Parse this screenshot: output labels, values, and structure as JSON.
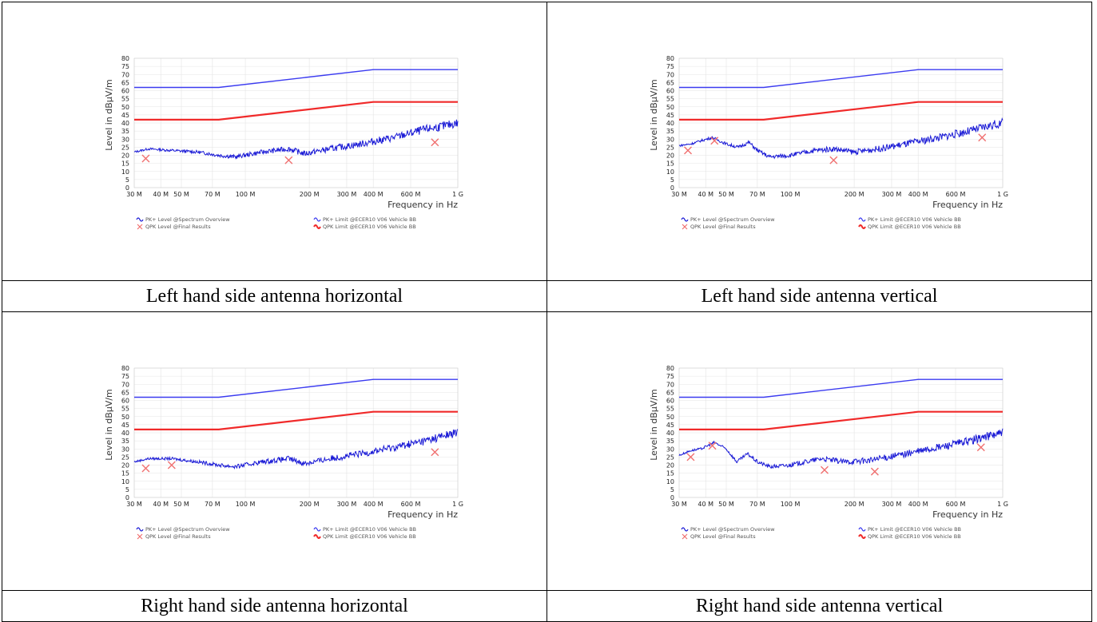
{
  "panels_caption": [
    "Left hand side antenna horizontal",
    "Left hand side antenna vertical",
    "Right hand side antenna horizontal",
    "Right hand side antenna vertical"
  ],
  "colors": {
    "pk_trace": "#1a1ad6",
    "pk_limit": "#3b3bf0",
    "qpk_limit": "#f02a2a",
    "qpk_marker": "#f07070",
    "grid": "#e4e4e4"
  },
  "chart_data": [
    {
      "type": "line",
      "title": "",
      "xlabel": "Frequency in Hz",
      "ylabel": "Level in dBµV/m",
      "x_scale": "log",
      "xlim": [
        30000000,
        1000000000
      ],
      "ylim": [
        0,
        80
      ],
      "x_ticks": [
        "30 M",
        "40 M",
        "50 M",
        "70 M",
        "100 M",
        "200 M",
        "300 M",
        "400 M",
        "600 M",
        "1 G"
      ],
      "y_ticks": [
        "0",
        "5",
        "10",
        "15",
        "20",
        "25",
        "30",
        "35",
        "40",
        "45",
        "50",
        "55",
        "60",
        "65",
        "70",
        "75",
        "80"
      ],
      "legend": [
        "PK+ Level @Spectrum Overview",
        "QPK Level @Final Results",
        "PK+ Limit @ECER10 V06 Vehicle BB",
        "QPK Limit @ECER10 V06 Vehicle BB"
      ],
      "legend_position": "bottom",
      "series": [
        {
          "name": "PK+ Limit @ECER10 V06 Vehicle BB",
          "x": [
            30000000,
            75000000,
            400000000,
            1000000000
          ],
          "y": [
            62,
            62,
            73,
            73
          ]
        },
        {
          "name": "QPK Limit @ECER10 V06 Vehicle BB",
          "x": [
            30000000,
            75000000,
            400000000,
            1000000000
          ],
          "y": [
            42,
            42,
            53,
            53
          ]
        },
        {
          "name": "PK+ Level @Spectrum Overview",
          "x": [
            30000000,
            35000000,
            45000000,
            60000000,
            75000000,
            90000000,
            120000000,
            160000000,
            190000000,
            250000000,
            350000000,
            500000000,
            700000000,
            850000000,
            1000000000
          ],
          "y": [
            22,
            24,
            23,
            22,
            20,
            19,
            22,
            24,
            21,
            24,
            27,
            31,
            36,
            38,
            40
          ]
        },
        {
          "name": "QPK Level @Final Results",
          "x": [
            34000000,
            160000000,
            780000000
          ],
          "y": [
            18,
            17,
            28
          ]
        }
      ]
    },
    {
      "type": "line",
      "title": "",
      "xlabel": "Frequency in Hz",
      "ylabel": "Level in dBµV/m",
      "x_scale": "log",
      "xlim": [
        30000000,
        1000000000
      ],
      "ylim": [
        0,
        80
      ],
      "x_ticks": [
        "30 M",
        "40 M",
        "50 M",
        "70 M",
        "100 M",
        "200 M",
        "300 M",
        "400 M",
        "600 M",
        "1 G"
      ],
      "y_ticks": [
        "0",
        "5",
        "10",
        "15",
        "20",
        "25",
        "30",
        "35",
        "40",
        "45",
        "50",
        "55",
        "60",
        "65",
        "70",
        "75",
        "80"
      ],
      "legend": [
        "PK+ Level @Spectrum Overview",
        "QPK Level @Final Results",
        "PK+ Limit @ECER10 V06 Vehicle BB",
        "QPK Limit @ECER10 V06 Vehicle BB"
      ],
      "legend_position": "bottom",
      "series": [
        {
          "name": "PK+ Limit @ECER10 V06 Vehicle BB",
          "x": [
            30000000,
            75000000,
            400000000,
            1000000000
          ],
          "y": [
            62,
            62,
            73,
            73
          ]
        },
        {
          "name": "QPK Limit @ECER10 V06 Vehicle BB",
          "x": [
            30000000,
            75000000,
            400000000,
            1000000000
          ],
          "y": [
            42,
            42,
            53,
            53
          ]
        },
        {
          "name": "PK+ Level @Spectrum Overview",
          "x": [
            30000000,
            34000000,
            38000000,
            43000000,
            50000000,
            57000000,
            64000000,
            70000000,
            80000000,
            100000000,
            130000000,
            160000000,
            200000000,
            260000000,
            350000000,
            500000000,
            700000000,
            850000000,
            1000000000
          ],
          "y": [
            26,
            27,
            29,
            31,
            27,
            25,
            28,
            23,
            19,
            20,
            23,
            24,
            22,
            24,
            27,
            31,
            35,
            38,
            40
          ]
        },
        {
          "name": "QPK Level @Final Results",
          "x": [
            33000000,
            44000000,
            160000000,
            800000000
          ],
          "y": [
            23,
            29,
            17,
            31
          ]
        }
      ]
    },
    {
      "type": "line",
      "title": "",
      "xlabel": "Frequency in Hz",
      "ylabel": "Level in dBµV/m",
      "x_scale": "log",
      "xlim": [
        30000000,
        1000000000
      ],
      "ylim": [
        0,
        80
      ],
      "x_ticks": [
        "30 M",
        "40 M",
        "50 M",
        "70 M",
        "100 M",
        "200 M",
        "300 M",
        "400 M",
        "600 M",
        "1 G"
      ],
      "y_ticks": [
        "0",
        "5",
        "10",
        "15",
        "20",
        "25",
        "30",
        "35",
        "40",
        "45",
        "50",
        "55",
        "60",
        "65",
        "70",
        "75",
        "80"
      ],
      "legend": [
        "PK+ Level @Spectrum Overview",
        "QPK Level @Final Results",
        "PK+ Limit @ECER10 V06 Vehicle BB",
        "QPK Limit @ECER10 V06 Vehicle BB"
      ],
      "legend_position": "bottom",
      "series": [
        {
          "name": "PK+ Limit @ECER10 V06 Vehicle BB",
          "x": [
            30000000,
            75000000,
            400000000,
            1000000000
          ],
          "y": [
            62,
            62,
            73,
            73
          ]
        },
        {
          "name": "QPK Limit @ECER10 V06 Vehicle BB",
          "x": [
            30000000,
            75000000,
            400000000,
            1000000000
          ],
          "y": [
            42,
            42,
            53,
            53
          ]
        },
        {
          "name": "PK+ Level @Spectrum Overview",
          "x": [
            30000000,
            35000000,
            45000000,
            60000000,
            75000000,
            90000000,
            120000000,
            160000000,
            190000000,
            250000000,
            350000000,
            500000000,
            700000000,
            850000000,
            1000000000
          ],
          "y": [
            22,
            24,
            24,
            22,
            20,
            19,
            22,
            24,
            21,
            24,
            27,
            31,
            35,
            38,
            40
          ]
        },
        {
          "name": "QPK Level @Final Results",
          "x": [
            34000000,
            45000000,
            780000000
          ],
          "y": [
            18,
            20,
            28
          ]
        }
      ]
    },
    {
      "type": "line",
      "title": "",
      "xlabel": "Frequency in Hz",
      "ylabel": "Level in dBµV/m",
      "x_scale": "log",
      "xlim": [
        30000000,
        1000000000
      ],
      "ylim": [
        0,
        80
      ],
      "x_ticks": [
        "30 M",
        "40 M",
        "50 M",
        "70 M",
        "100 M",
        "200 M",
        "300 M",
        "400 M",
        "600 M",
        "1 G"
      ],
      "y_ticks": [
        "0",
        "5",
        "10",
        "15",
        "20",
        "25",
        "30",
        "35",
        "40",
        "45",
        "50",
        "55",
        "60",
        "65",
        "70",
        "75",
        "80"
      ],
      "legend": [
        "PK+ Level @Spectrum Overview",
        "QPK Level @Final Results",
        "PK+ Limit @ECER10 V06 Vehicle BB",
        "QPK Limit @ECER10 V06 Vehicle BB"
      ],
      "legend_position": "bottom",
      "series": [
        {
          "name": "PK+ Limit @ECER10 V06 Vehicle BB",
          "x": [
            30000000,
            75000000,
            400000000,
            1000000000
          ],
          "y": [
            62,
            62,
            73,
            73
          ]
        },
        {
          "name": "QPK Limit @ECER10 V06 Vehicle BB",
          "x": [
            30000000,
            75000000,
            400000000,
            1000000000
          ],
          "y": [
            42,
            42,
            53,
            53
          ]
        },
        {
          "name": "PK+ Level @Spectrum Overview",
          "x": [
            30000000,
            34000000,
            38000000,
            44000000,
            50000000,
            56000000,
            63000000,
            70000000,
            80000000,
            100000000,
            140000000,
            180000000,
            240000000,
            350000000,
            500000000,
            700000000,
            850000000,
            1000000000
          ],
          "y": [
            26,
            29,
            30,
            34,
            30,
            22,
            27,
            22,
            19,
            20,
            24,
            22,
            23,
            27,
            31,
            35,
            38,
            40
          ]
        },
        {
          "name": "QPK Level @Final Results",
          "x": [
            34000000,
            43000000,
            145000000,
            250000000,
            790000000
          ],
          "y": [
            25,
            32,
            17,
            16,
            31
          ]
        }
      ]
    }
  ]
}
